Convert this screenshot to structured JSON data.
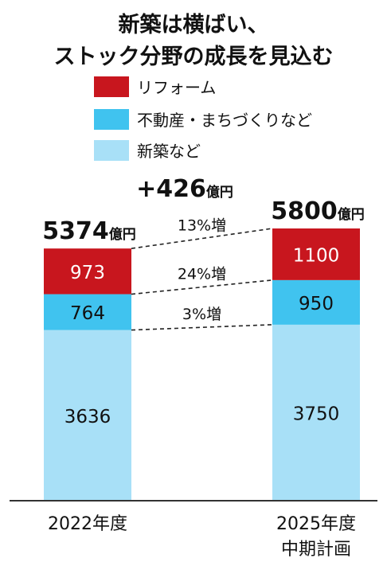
{
  "title_lines": [
    "新築は横ばい、",
    "ストック分野の成長を見込む"
  ],
  "chart_data": {
    "type": "bar",
    "stacked": true,
    "categories": [
      [
        "2022年度"
      ],
      [
        "2025年度",
        "中期計画"
      ]
    ],
    "series": [
      {
        "name": "新築など",
        "color": "#a8e0f7",
        "values": [
          3636,
          3750
        ]
      },
      {
        "name": "不動産・まちづくりなど",
        "color": "#40c3ef",
        "values": [
          764,
          950
        ]
      },
      {
        "name": "リフォーム",
        "color": "#c8161e",
        "values": [
          973,
          1100
        ]
      }
    ],
    "legend_order": [
      2,
      1,
      0
    ],
    "legend_placement": "top-left",
    "totals": [
      {
        "value": "5374",
        "unit": "億円"
      },
      {
        "value": "5800",
        "unit": "億円"
      }
    ],
    "difference": {
      "value": "+426",
      "unit": "億円"
    },
    "growth_labels": [
      "3%増",
      "24%増",
      "13%増"
    ],
    "unit": "億円",
    "ylim": [
      0,
      5800
    ],
    "grid": false
  }
}
